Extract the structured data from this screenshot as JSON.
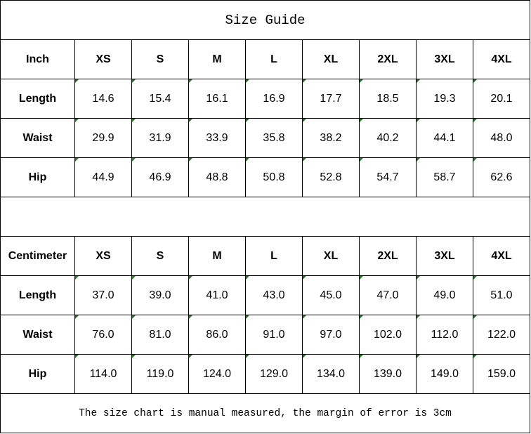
{
  "title": "Size Guide",
  "tables": [
    {
      "unit": "Inch",
      "sizes": [
        "XS",
        "S",
        "M",
        "L",
        "XL",
        "2XL",
        "3XL",
        "4XL"
      ],
      "rows": [
        {
          "label": "Length",
          "values": [
            "14.6",
            "15.4",
            "16.1",
            "16.9",
            "17.7",
            "18.5",
            "19.3",
            "20.1"
          ]
        },
        {
          "label": "Waist",
          "values": [
            "29.9",
            "31.9",
            "33.9",
            "35.8",
            "38.2",
            "40.2",
            "44.1",
            "48.0"
          ]
        },
        {
          "label": "Hip",
          "values": [
            "44.9",
            "46.9",
            "48.8",
            "50.8",
            "52.8",
            "54.7",
            "58.7",
            "62.6"
          ]
        }
      ]
    },
    {
      "unit": "Centimeter",
      "sizes": [
        "XS",
        "S",
        "M",
        "L",
        "XL",
        "2XL",
        "3XL",
        "4XL"
      ],
      "rows": [
        {
          "label": "Length",
          "values": [
            "37.0",
            "39.0",
            "41.0",
            "43.0",
            "45.0",
            "47.0",
            "49.0",
            "51.0"
          ]
        },
        {
          "label": "Waist",
          "values": [
            "76.0",
            "81.0",
            "86.0",
            "91.0",
            "97.0",
            "102.0",
            "112.0",
            "122.0"
          ]
        },
        {
          "label": "Hip",
          "values": [
            "114.0",
            "119.0",
            "124.0",
            "129.0",
            "134.0",
            "139.0",
            "149.0",
            "159.0"
          ]
        }
      ]
    }
  ],
  "note": "The size chart is manual measured, the margin of error is 3cm",
  "colors": {
    "cell_marker": "#1a7a1a",
    "border": "#000000"
  }
}
